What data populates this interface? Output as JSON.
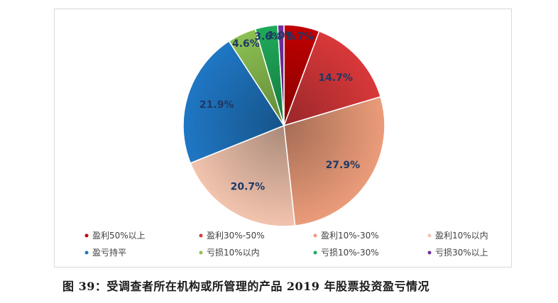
{
  "chart_data": {
    "type": "pie",
    "title": "",
    "slices": [
      {
        "name": "盈利50%以上",
        "value": 5.7,
        "label": "5.7%",
        "color": "#c00000"
      },
      {
        "name": "盈利30%-50%",
        "value": 14.7,
        "label": "14.7%",
        "color": "#d9383a"
      },
      {
        "name": "盈利10%-30%",
        "value": 27.9,
        "label": "27.9%",
        "color": "#eb9c7a"
      },
      {
        "name": "盈利10%以内",
        "value": 20.7,
        "label": "20.7%",
        "color": "#f2c4ae"
      },
      {
        "name": "盈亏持平",
        "value": 21.9,
        "label": "21.9%",
        "color": "#1f77c4"
      },
      {
        "name": "亏损10%以内",
        "value": 4.6,
        "label": "4.6%",
        "color": "#8cc152"
      },
      {
        "name": "亏损10%-30%",
        "value": 3.6,
        "label": "3.6%",
        "color": "#1faa5a"
      },
      {
        "name": "亏损30%以上",
        "value": 1.0,
        "label": "1.0%",
        "color": "#7030a0"
      }
    ],
    "legend_placement": "bottom"
  },
  "caption": "图 39：受调查者所在机构或所管理的产品 2019 年股票投资盈亏情况"
}
